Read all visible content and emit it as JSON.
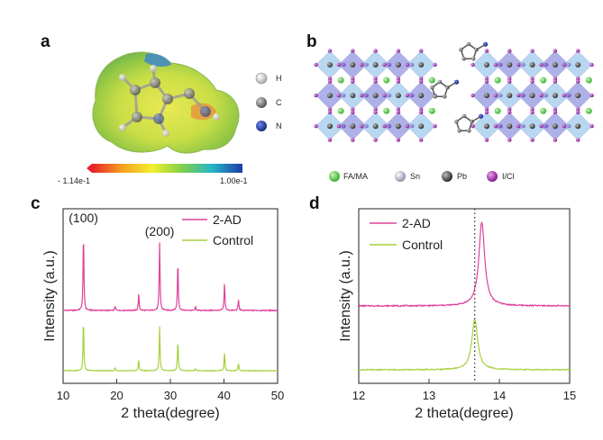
{
  "panels": {
    "a": {
      "letter": "a",
      "atoms": [
        {
          "label": "H",
          "color": "#e6e6e6"
        },
        {
          "label": "C",
          "color": "#8a8a8a"
        },
        {
          "label": "N",
          "color": "#1f3aa8"
        }
      ],
      "colorbar": {
        "min_label": "- 1.14e-1",
        "max_label": "1.00e-1"
      }
    },
    "b": {
      "letter": "b",
      "legend": [
        {
          "label": "FA/MA",
          "color": "#33c62a"
        },
        {
          "label": "Sn",
          "color": "#b8b4c8"
        },
        {
          "label": "Pb",
          "color": "#505050"
        },
        {
          "label": "I/Cl",
          "color": "#9a1fa0"
        }
      ]
    }
  },
  "colors": {
    "2AD": "#e0409a",
    "control": "#a6d13f"
  },
  "chart_data": [
    {
      "panel": "c",
      "type": "line",
      "xlabel": "2 theta(degree)",
      "ylabel": "Intensity (a.u.)",
      "xlim": [
        10,
        50
      ],
      "xticks": [
        10,
        20,
        30,
        40,
        50
      ],
      "peak_labels": [
        {
          "text": "(100)",
          "x": 13.8
        },
        {
          "text": "(200)",
          "x": 28.0
        }
      ],
      "series": [
        {
          "name": "2-AD",
          "color": "#e0409a",
          "peaks": [
            {
              "x": 13.8,
              "y": 0.95
            },
            {
              "x": 19.7,
              "y": 0.05
            },
            {
              "x": 24.1,
              "y": 0.2
            },
            {
              "x": 28.0,
              "y": 0.82
            },
            {
              "x": 31.4,
              "y": 0.6
            },
            {
              "x": 34.7,
              "y": 0.04
            },
            {
              "x": 40.1,
              "y": 0.33
            },
            {
              "x": 42.7,
              "y": 0.13
            }
          ]
        },
        {
          "name": "Control",
          "color": "#a6d13f",
          "peaks": [
            {
              "x": 13.8,
              "y": 0.95
            },
            {
              "x": 19.7,
              "y": 0.05
            },
            {
              "x": 24.1,
              "y": 0.2
            },
            {
              "x": 28.0,
              "y": 0.82
            },
            {
              "x": 31.4,
              "y": 0.56
            },
            {
              "x": 34.7,
              "y": 0.04
            },
            {
              "x": 40.1,
              "y": 0.34
            },
            {
              "x": 42.7,
              "y": 0.14
            }
          ]
        }
      ]
    },
    {
      "panel": "d",
      "type": "line",
      "xlabel": "2 theta(degree)",
      "ylabel": "Intensity (a.u.)",
      "xlim": [
        12,
        15
      ],
      "xticks": [
        12,
        13,
        14,
        15
      ],
      "reference_line_x": 13.65,
      "series": [
        {
          "name": "2-AD",
          "color": "#e0409a",
          "peak_x": 13.75,
          "peak_y": 0.95
        },
        {
          "name": "Control",
          "color": "#a6d13f",
          "peak_x": 13.65,
          "peak_y": 0.72
        }
      ]
    }
  ]
}
